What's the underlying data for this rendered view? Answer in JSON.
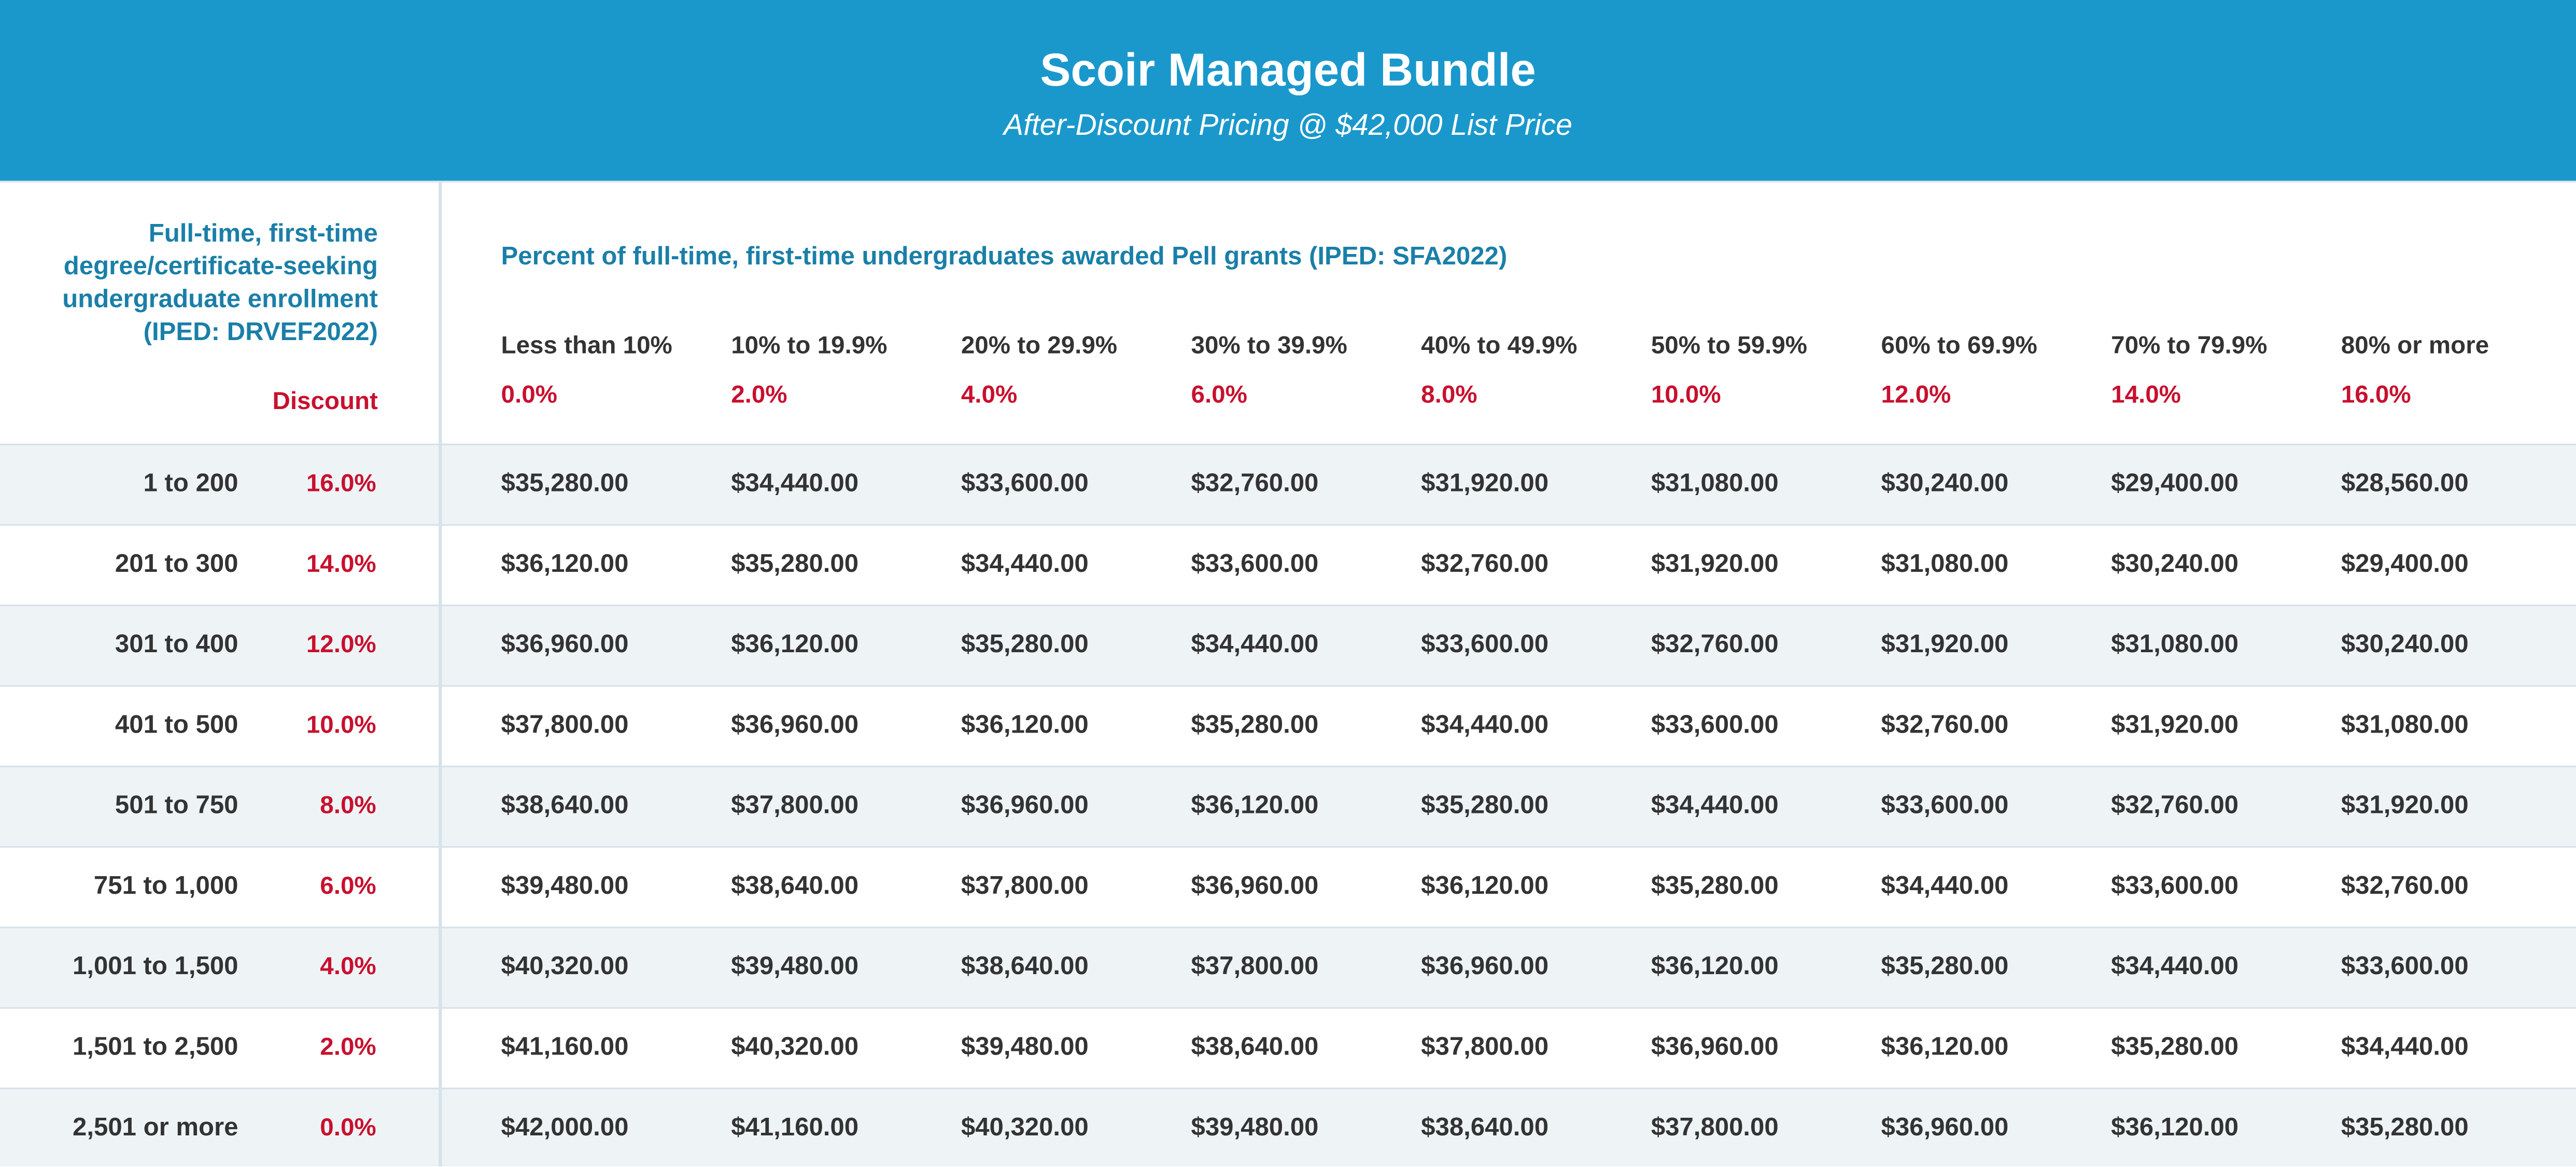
{
  "header": {
    "title": "Scoir Managed Bundle",
    "subtitle": "After-Discount Pricing @ $42,000 List Price"
  },
  "table": {
    "row_header": [
      "Full-time, first-time",
      "degree/certificate-seeking",
      "undergraduate enrollment",
      "(IPED: DRVEF2022)"
    ],
    "discount_label": "Discount",
    "column_group": "Percent of full-time, first-time undergraduates awarded Pell grants (IPED: SFA2022)",
    "columns": [
      {
        "label": "Less than 10%",
        "discount": "0.0%"
      },
      {
        "label": "10% to 19.9%",
        "discount": "2.0%"
      },
      {
        "label": "20% to 29.9%",
        "discount": "4.0%"
      },
      {
        "label": "30% to 39.9%",
        "discount": "6.0%"
      },
      {
        "label": "40% to 49.9%",
        "discount": "8.0%"
      },
      {
        "label": "50% to 59.9%",
        "discount": "10.0%"
      },
      {
        "label": "60% to 69.9%",
        "discount": "12.0%"
      },
      {
        "label": "70% to 79.9%",
        "discount": "14.0%"
      },
      {
        "label": "80% or more",
        "discount": "16.0%"
      }
    ],
    "rows": [
      {
        "enrollment": "1 to 200",
        "discount": "16.0%",
        "prices": [
          "$35,280.00",
          "$34,440.00",
          "$33,600.00",
          "$32,760.00",
          "$31,920.00",
          "$31,080.00",
          "$30,240.00",
          "$29,400.00",
          "$28,560.00"
        ]
      },
      {
        "enrollment": "201 to 300",
        "discount": "14.0%",
        "prices": [
          "$36,120.00",
          "$35,280.00",
          "$34,440.00",
          "$33,600.00",
          "$32,760.00",
          "$31,920.00",
          "$31,080.00",
          "$30,240.00",
          "$29,400.00"
        ]
      },
      {
        "enrollment": "301 to 400",
        "discount": "12.0%",
        "prices": [
          "$36,960.00",
          "$36,120.00",
          "$35,280.00",
          "$34,440.00",
          "$33,600.00",
          "$32,760.00",
          "$31,920.00",
          "$31,080.00",
          "$30,240.00"
        ]
      },
      {
        "enrollment": "401 to 500",
        "discount": "10.0%",
        "prices": [
          "$37,800.00",
          "$36,960.00",
          "$36,120.00",
          "$35,280.00",
          "$34,440.00",
          "$33,600.00",
          "$32,760.00",
          "$31,920.00",
          "$31,080.00"
        ]
      },
      {
        "enrollment": "501 to 750",
        "discount": "8.0%",
        "prices": [
          "$38,640.00",
          "$37,800.00",
          "$36,960.00",
          "$36,120.00",
          "$35,280.00",
          "$34,440.00",
          "$33,600.00",
          "$32,760.00",
          "$31,920.00"
        ]
      },
      {
        "enrollment": "751 to 1,000",
        "discount": "6.0%",
        "prices": [
          "$39,480.00",
          "$38,640.00",
          "$37,800.00",
          "$36,960.00",
          "$36,120.00",
          "$35,280.00",
          "$34,440.00",
          "$33,600.00",
          "$32,760.00"
        ]
      },
      {
        "enrollment": "1,001 to 1,500",
        "discount": "4.0%",
        "prices": [
          "$40,320.00",
          "$39,480.00",
          "$38,640.00",
          "$37,800.00",
          "$36,960.00",
          "$36,120.00",
          "$35,280.00",
          "$34,440.00",
          "$33,600.00"
        ]
      },
      {
        "enrollment": "1,501 to 2,500",
        "discount": "2.0%",
        "prices": [
          "$41,160.00",
          "$40,320.00",
          "$39,480.00",
          "$38,640.00",
          "$37,800.00",
          "$36,960.00",
          "$36,120.00",
          "$35,280.00",
          "$34,440.00"
        ]
      },
      {
        "enrollment": "2,501 or more",
        "discount": "0.0%",
        "prices": [
          "$42,000.00",
          "$41,160.00",
          "$40,320.00",
          "$39,480.00",
          "$38,640.00",
          "$37,800.00",
          "$36,960.00",
          "$36,120.00",
          "$35,280.00"
        ]
      }
    ]
  }
}
